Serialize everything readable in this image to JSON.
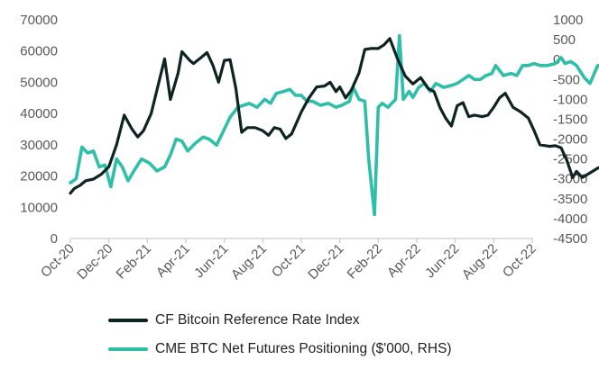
{
  "chart_data": {
    "type": "line",
    "x_ticks": [
      "Oct-20",
      "Dec-20",
      "Feb-21",
      "Apr-21",
      "Jun-21",
      "Aug-21",
      "Oct-21",
      "Dec-21",
      "Feb-22",
      "Apr-22",
      "Jun-22",
      "Aug-22",
      "Oct-22"
    ],
    "y_left": {
      "ticks": [
        "0",
        "10000",
        "20000",
        "30000",
        "40000",
        "50000",
        "60000",
        "70000"
      ],
      "range": [
        0,
        70000
      ]
    },
    "y_right": {
      "ticks": [
        "1000",
        "500",
        "0",
        "-500",
        "-1000",
        "-1500",
        "-2000",
        "-2500",
        "-3000",
        "-3500",
        "-4000",
        "-4500"
      ],
      "range": [
        -4500,
        1000
      ]
    },
    "series": [
      {
        "name": "CF Bitcoin Reference Rate Index",
        "axis": "left",
        "color": "#0e2423",
        "points": [
          [
            0,
            14500
          ],
          [
            0.1,
            16000
          ],
          [
            0.25,
            17000
          ],
          [
            0.4,
            18500
          ],
          [
            0.6,
            19000
          ],
          [
            0.8,
            20500
          ],
          [
            1.0,
            23000
          ],
          [
            1.2,
            30000
          ],
          [
            1.4,
            39500
          ],
          [
            1.6,
            35000
          ],
          [
            1.75,
            32500
          ],
          [
            1.9,
            34500
          ],
          [
            2.1,
            40000
          ],
          [
            2.3,
            50000
          ],
          [
            2.45,
            57500
          ],
          [
            2.6,
            44500
          ],
          [
            2.8,
            53000
          ],
          [
            2.9,
            59800
          ],
          [
            3.1,
            57000
          ],
          [
            3.2,
            56000
          ],
          [
            3.4,
            58000
          ],
          [
            3.55,
            59500
          ],
          [
            3.7,
            55500
          ],
          [
            3.85,
            50000
          ],
          [
            4.0,
            57000
          ],
          [
            4.15,
            57200
          ],
          [
            4.3,
            48000
          ],
          [
            4.45,
            34000
          ],
          [
            4.6,
            35500
          ],
          [
            4.8,
            35500
          ],
          [
            5.0,
            34500
          ],
          [
            5.15,
            33000
          ],
          [
            5.3,
            35500
          ],
          [
            5.45,
            35000
          ],
          [
            5.6,
            32000
          ],
          [
            5.75,
            33500
          ],
          [
            6.0,
            40500
          ],
          [
            6.2,
            45000
          ],
          [
            6.4,
            48500
          ],
          [
            6.6,
            48800
          ],
          [
            6.75,
            50000
          ],
          [
            6.9,
            47000
          ],
          [
            7.0,
            48500
          ],
          [
            7.15,
            45000
          ],
          [
            7.3,
            47500
          ],
          [
            7.5,
            53000
          ],
          [
            7.65,
            60500
          ],
          [
            7.8,
            60800
          ],
          [
            8.0,
            60800
          ],
          [
            8.15,
            62000
          ],
          [
            8.3,
            64000
          ],
          [
            8.5,
            57500
          ],
          [
            8.7,
            52000
          ],
          [
            8.9,
            49500
          ],
          [
            9.1,
            51500
          ],
          [
            9.3,
            48000
          ],
          [
            9.45,
            47000
          ],
          [
            9.6,
            42000
          ],
          [
            9.75,
            38500
          ],
          [
            9.9,
            36000
          ],
          [
            10.05,
            42500
          ],
          [
            10.2,
            43500
          ],
          [
            10.35,
            39000
          ],
          [
            10.5,
            39500
          ],
          [
            10.7,
            39000
          ],
          [
            10.85,
            39500
          ],
          [
            11.0,
            42000
          ],
          [
            11.15,
            45000
          ],
          [
            11.3,
            46500
          ],
          [
            11.5,
            42000
          ],
          [
            11.7,
            40500
          ],
          [
            11.9,
            38500
          ],
          [
            12.05,
            34500
          ],
          [
            12.2,
            30000
          ],
          [
            12.45,
            29500
          ],
          [
            12.6,
            29700
          ],
          [
            12.75,
            29000
          ],
          [
            12.9,
            25000
          ],
          [
            13.05,
            19500
          ],
          [
            13.15,
            21500
          ],
          [
            13.3,
            19500
          ],
          [
            13.5,
            21000
          ],
          [
            13.7,
            22500
          ],
          [
            13.9,
            23500
          ],
          [
            14.05,
            24500
          ],
          [
            14.25,
            22000
          ],
          [
            14.4,
            20200
          ],
          [
            14.6,
            20000
          ],
          [
            14.75,
            21700
          ],
          [
            14.9,
            19500
          ],
          [
            15.1,
            19600
          ],
          [
            15.3,
            20000
          ],
          [
            15.5,
            19500
          ],
          [
            15.7,
            19400
          ],
          [
            15.85,
            20000
          ],
          [
            16.0,
            20800
          ]
        ]
      },
      {
        "name": "CME BTC Net Futures Positioning ($'000, RHS)",
        "axis": "right",
        "color": "#2fbfa9",
        "points": [
          [
            0,
            -3100
          ],
          [
            0.15,
            -3000
          ],
          [
            0.3,
            -2200
          ],
          [
            0.45,
            -2350
          ],
          [
            0.6,
            -2300
          ],
          [
            0.75,
            -2700
          ],
          [
            0.9,
            -2650
          ],
          [
            1.05,
            -3200
          ],
          [
            1.2,
            -2500
          ],
          [
            1.35,
            -2700
          ],
          [
            1.5,
            -3050
          ],
          [
            1.65,
            -2800
          ],
          [
            1.85,
            -2500
          ],
          [
            2.05,
            -2600
          ],
          [
            2.25,
            -2800
          ],
          [
            2.45,
            -2700
          ],
          [
            2.6,
            -2400
          ],
          [
            2.75,
            -2000
          ],
          [
            2.9,
            -2050
          ],
          [
            3.05,
            -2300
          ],
          [
            3.25,
            -2100
          ],
          [
            3.45,
            -1950
          ],
          [
            3.6,
            -2000
          ],
          [
            3.8,
            -2150
          ],
          [
            4.0,
            -1750
          ],
          [
            4.15,
            -1450
          ],
          [
            4.35,
            -1200
          ],
          [
            4.5,
            -1150
          ],
          [
            4.65,
            -1100
          ],
          [
            4.85,
            -1200
          ],
          [
            5.05,
            -1000
          ],
          [
            5.2,
            -1100
          ],
          [
            5.35,
            -850
          ],
          [
            5.55,
            -800
          ],
          [
            5.7,
            -750
          ],
          [
            5.85,
            -900
          ],
          [
            6.0,
            -900
          ],
          [
            6.15,
            -1050
          ],
          [
            6.3,
            -1050
          ],
          [
            6.5,
            -1150
          ],
          [
            6.7,
            -1100
          ],
          [
            6.9,
            -1200
          ],
          [
            7.05,
            -1150
          ],
          [
            7.25,
            -1050
          ],
          [
            7.35,
            -700
          ],
          [
            7.5,
            -1000
          ],
          [
            7.65,
            -1050
          ],
          [
            7.75,
            -2500
          ],
          [
            7.9,
            -3900
          ],
          [
            8.0,
            -1200
          ],
          [
            8.1,
            -1100
          ],
          [
            8.25,
            -1200
          ],
          [
            8.45,
            -1000
          ],
          [
            8.55,
            600
          ],
          [
            8.65,
            -1000
          ],
          [
            8.8,
            -800
          ],
          [
            8.9,
            -950
          ],
          [
            9.05,
            -700
          ],
          [
            9.2,
            -600
          ],
          [
            9.35,
            -800
          ],
          [
            9.5,
            -600
          ],
          [
            9.7,
            -700
          ],
          [
            9.9,
            -650
          ],
          [
            10.05,
            -600
          ],
          [
            10.2,
            -500
          ],
          [
            10.35,
            -400
          ],
          [
            10.5,
            -500
          ],
          [
            10.65,
            -500
          ],
          [
            10.8,
            -400
          ],
          [
            10.95,
            -350
          ],
          [
            11.05,
            -150
          ],
          [
            11.25,
            -400
          ],
          [
            11.45,
            -350
          ],
          [
            11.6,
            -400
          ],
          [
            11.75,
            -150
          ],
          [
            11.9,
            -150
          ],
          [
            12.05,
            -100
          ],
          [
            12.2,
            -150
          ],
          [
            12.4,
            -150
          ],
          [
            12.6,
            -100
          ],
          [
            12.75,
            50
          ],
          [
            12.85,
            -100
          ],
          [
            13.0,
            -50
          ],
          [
            13.15,
            -150
          ],
          [
            13.35,
            -450
          ],
          [
            13.5,
            -600
          ],
          [
            13.7,
            -150
          ],
          [
            13.85,
            -200
          ],
          [
            14.05,
            -300
          ],
          [
            14.25,
            -150
          ],
          [
            14.4,
            -200
          ],
          [
            14.6,
            50
          ],
          [
            14.75,
            100
          ],
          [
            14.9,
            -150
          ],
          [
            15.05,
            -200
          ],
          [
            15.2,
            -400
          ],
          [
            15.35,
            -300
          ],
          [
            15.5,
            -150
          ],
          [
            15.65,
            -200
          ],
          [
            15.8,
            -600
          ],
          [
            16.0,
            -300
          ]
        ]
      }
    ],
    "legend": {
      "position": "bottom-left",
      "entries": [
        "CF Bitcoin Reference Rate Index",
        "CME BTC Net Futures Positioning ($'000, RHS)"
      ]
    },
    "grid": false
  }
}
